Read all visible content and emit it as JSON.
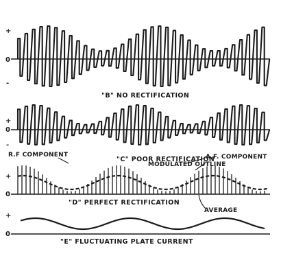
{
  "panels": {
    "b": {
      "caption": "\"B\" NO RECTIFICATION",
      "plus": "+",
      "zero": "0",
      "minus": "-"
    },
    "c": {
      "caption": "\"C\" POOR RECTIFICATION",
      "plus": "+",
      "zero": "0",
      "minus": "-"
    },
    "d": {
      "caption": "\"D\" PERFECT RECTIFICATION",
      "plus": "+",
      "zero": "0",
      "rf_label": "R.F COMPONENT",
      "outline_label": "MODULATED OUTLINE",
      "af_label": "A.F. COMPONENT",
      "average_label": "AVERAGE"
    },
    "e": {
      "caption": "\"E\" FLUCTUATING PLATE CURRENT",
      "plus": "+",
      "zero": "0"
    }
  }
}
